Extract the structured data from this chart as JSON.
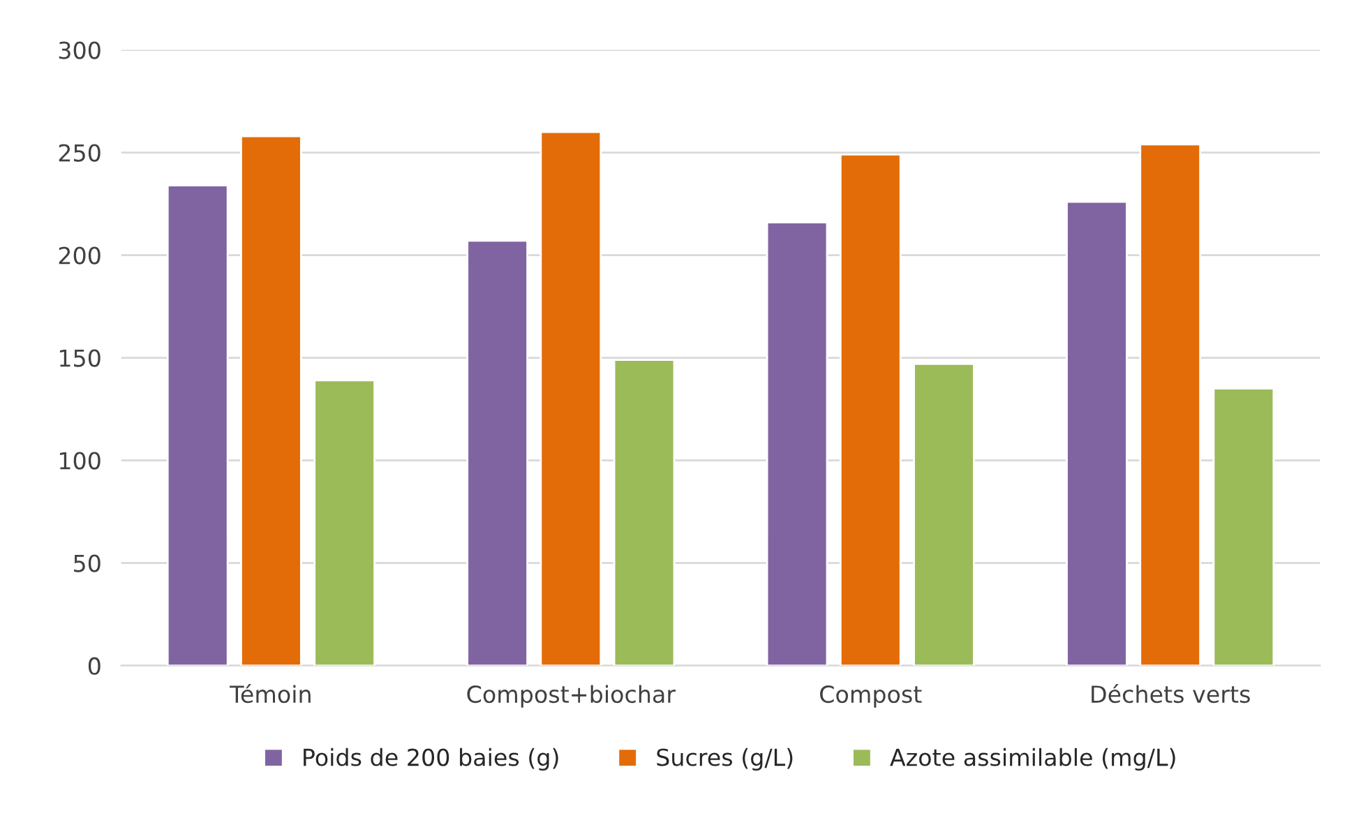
{
  "chart_data": {
    "type": "bar",
    "categories": [
      "Témoin",
      "Compost+biochar",
      "Compost",
      "Déchets verts"
    ],
    "series": [
      {
        "name": "Poids de 200 baies (g)",
        "color": "#8064a2",
        "values": [
          234,
          207,
          216,
          226
        ]
      },
      {
        "name": "Sucres (g/L)",
        "color": "#e36c09",
        "values": [
          258,
          260,
          249,
          254
        ]
      },
      {
        "name": "Azote assimilable (mg/L)",
        "color": "#9bbb59",
        "values": [
          139,
          149,
          147,
          135
        ]
      }
    ],
    "ylim": [
      0,
      300
    ],
    "yticks": [
      0,
      50,
      100,
      150,
      200,
      250,
      300
    ],
    "grid": "y",
    "legend": "bottom"
  }
}
